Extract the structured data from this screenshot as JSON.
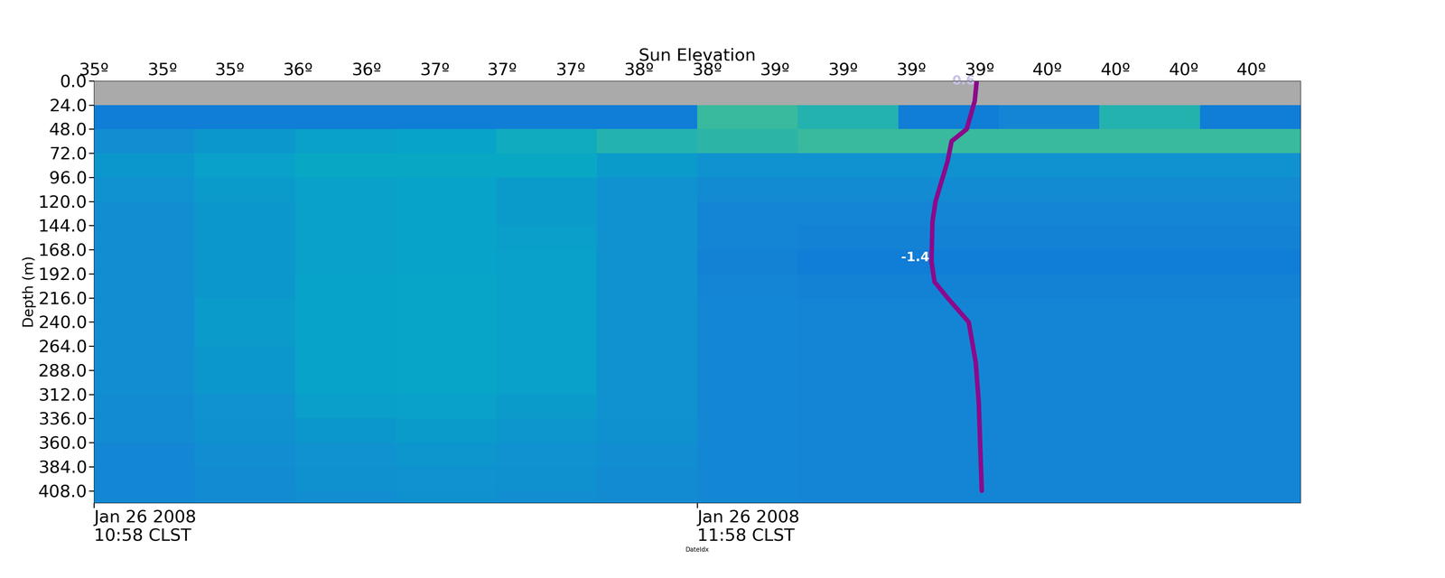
{
  "chart_data": {
    "type": "heatmap",
    "xlabel": "DateIdx",
    "ylabel": "Depth (m)",
    "xlim": [
      0,
      120
    ],
    "ylim": [
      420,
      0
    ],
    "xticks": [
      {
        "value": 0,
        "label": "Jan 26 2008\n10:58 CLST"
      },
      {
        "value": 60,
        "label": "Jan 26 2008\n11:58 CLST"
      }
    ],
    "yticks": [
      {
        "value": 0,
        "label": "0.0"
      },
      {
        "value": 24,
        "label": "24.0"
      },
      {
        "value": 48,
        "label": "48.0"
      },
      {
        "value": 72,
        "label": "72.0"
      },
      {
        "value": 96,
        "label": "96.0"
      },
      {
        "value": 120,
        "label": "120.0"
      },
      {
        "value": 144,
        "label": "144.0"
      },
      {
        "value": 168,
        "label": "168.0"
      },
      {
        "value": 192,
        "label": "192.0"
      },
      {
        "value": 216,
        "label": "216.0"
      },
      {
        "value": 240,
        "label": "240.0"
      },
      {
        "value": 264,
        "label": "264.0"
      },
      {
        "value": 288,
        "label": "288.0"
      },
      {
        "value": 312,
        "label": "312.0"
      },
      {
        "value": 336,
        "label": "336.0"
      },
      {
        "value": 360,
        "label": "360.0"
      },
      {
        "value": 384,
        "label": "384.0"
      },
      {
        "value": 408,
        "label": "408.0"
      }
    ],
    "top_axis": {
      "label": "Sun Elevation",
      "ticks": [
        {
          "value": 0,
          "label": "35º"
        },
        {
          "value": 6.8,
          "label": "35º"
        },
        {
          "value": 13.5,
          "label": "35º"
        },
        {
          "value": 20.3,
          "label": "36º"
        },
        {
          "value": 27.1,
          "label": "36º"
        },
        {
          "value": 33.9,
          "label": "37º"
        },
        {
          "value": 40.6,
          "label": "37º"
        },
        {
          "value": 47.4,
          "label": "37º"
        },
        {
          "value": 54.2,
          "label": "38º"
        },
        {
          "value": 61.0,
          "label": "38º"
        },
        {
          "value": 67.7,
          "label": "39º"
        },
        {
          "value": 74.5,
          "label": "39º"
        },
        {
          "value": 81.3,
          "label": "39º"
        },
        {
          "value": 88.1,
          "label": "39º"
        },
        {
          "value": 94.8,
          "label": "40º"
        },
        {
          "value": 101.6,
          "label": "40º"
        },
        {
          "value": 108.4,
          "label": "40º"
        },
        {
          "value": 115.1,
          "label": "40º"
        }
      ]
    },
    "x_edges": [
      0,
      10,
      20,
      30,
      40,
      50,
      60,
      70,
      80,
      90,
      100,
      110,
      120
    ],
    "y_edges": [
      0,
      24,
      48,
      72,
      96,
      120,
      144,
      168,
      192,
      216,
      240,
      264,
      288,
      312,
      336,
      360,
      384,
      408,
      420
    ],
    "color_range": [
      0,
      1
    ],
    "cells": [
      [
        null,
        null,
        null,
        null,
        null,
        null,
        null,
        null,
        null,
        null,
        null,
        null
      ],
      [
        0.22,
        0.22,
        0.22,
        0.22,
        0.22,
        0.22,
        0.5,
        0.45,
        0.22,
        0.25,
        0.45,
        0.22
      ],
      [
        0.28,
        0.32,
        0.35,
        0.36,
        0.4,
        0.45,
        0.47,
        0.5,
        0.5,
        0.5,
        0.5,
        0.5
      ],
      [
        0.32,
        0.35,
        0.38,
        0.38,
        0.38,
        0.33,
        0.3,
        0.3,
        0.3,
        0.3,
        0.3,
        0.3
      ],
      [
        0.3,
        0.33,
        0.35,
        0.36,
        0.33,
        0.3,
        0.27,
        0.27,
        0.27,
        0.27,
        0.27,
        0.27
      ],
      [
        0.28,
        0.32,
        0.35,
        0.36,
        0.33,
        0.3,
        0.25,
        0.25,
        0.25,
        0.25,
        0.25,
        0.25
      ],
      [
        0.28,
        0.32,
        0.35,
        0.36,
        0.34,
        0.3,
        0.25,
        0.24,
        0.24,
        0.24,
        0.24,
        0.24
      ],
      [
        0.28,
        0.32,
        0.35,
        0.36,
        0.35,
        0.3,
        0.24,
        0.22,
        0.22,
        0.22,
        0.22,
        0.22
      ],
      [
        0.28,
        0.32,
        0.36,
        0.37,
        0.35,
        0.3,
        0.25,
        0.24,
        0.24,
        0.24,
        0.24,
        0.24
      ],
      [
        0.28,
        0.33,
        0.36,
        0.37,
        0.35,
        0.3,
        0.26,
        0.25,
        0.25,
        0.25,
        0.25,
        0.25
      ],
      [
        0.28,
        0.33,
        0.36,
        0.37,
        0.35,
        0.3,
        0.26,
        0.25,
        0.25,
        0.25,
        0.25,
        0.25
      ],
      [
        0.28,
        0.32,
        0.36,
        0.37,
        0.35,
        0.3,
        0.26,
        0.25,
        0.25,
        0.25,
        0.25,
        0.25
      ],
      [
        0.28,
        0.32,
        0.36,
        0.37,
        0.35,
        0.3,
        0.26,
        0.25,
        0.25,
        0.25,
        0.25,
        0.25
      ],
      [
        0.27,
        0.3,
        0.34,
        0.35,
        0.33,
        0.3,
        0.26,
        0.25,
        0.25,
        0.25,
        0.25,
        0.25
      ],
      [
        0.27,
        0.29,
        0.32,
        0.33,
        0.31,
        0.29,
        0.26,
        0.25,
        0.25,
        0.25,
        0.25,
        0.25
      ],
      [
        0.26,
        0.28,
        0.3,
        0.31,
        0.3,
        0.28,
        0.26,
        0.25,
        0.25,
        0.25,
        0.25,
        0.25
      ],
      [
        0.26,
        0.27,
        0.29,
        0.3,
        0.29,
        0.27,
        0.26,
        0.25,
        0.25,
        0.25,
        0.25,
        0.25
      ],
      [
        0.26,
        0.27,
        0.28,
        0.29,
        0.28,
        0.27,
        0.26,
        0.25,
        0.25,
        0.25,
        0.25,
        0.25
      ]
    ],
    "profile": {
      "color": "#8b0a8b",
      "depth": [
        0,
        20,
        48,
        60,
        80,
        120,
        140,
        180,
        200,
        216,
        240,
        280,
        320,
        408
      ],
      "x": [
        87.8,
        87.6,
        86.8,
        85.3,
        84.9,
        83.7,
        83.4,
        83.3,
        83.6,
        84.9,
        87.0,
        87.7,
        88.0,
        88.3
      ],
      "labels": [
        {
          "text": "0.6",
          "x": 86.5,
          "depth": 0
        },
        {
          "text": "-1.4",
          "x": 81.7,
          "depth": 176
        }
      ]
    }
  }
}
